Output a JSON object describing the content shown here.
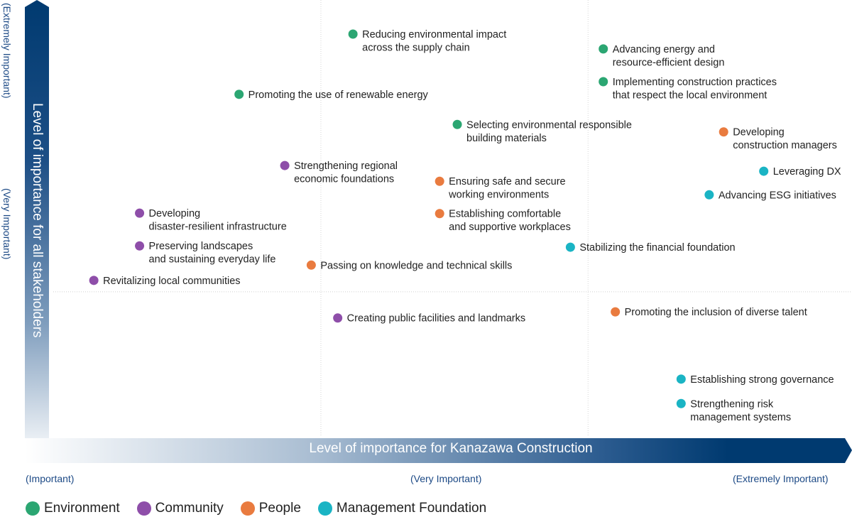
{
  "chart_data": {
    "type": "scatter",
    "title": "",
    "xlabel": "Level of importance for Kanazawa Construction",
    "ylabel": "Level of importance for all stakeholders",
    "xlim": [
      0,
      100
    ],
    "ylim": [
      0,
      100
    ],
    "grid": {
      "x": [
        33.8,
        67.1
      ],
      "y": [
        33.2
      ]
    },
    "x_ticks": [
      "(Important)",
      "(Very Important)",
      "(Extremely Important)"
    ],
    "y_ticks": [
      "(Extremely Important)",
      "(Very Important)"
    ],
    "legend_placement": "bottom-left",
    "categories": [
      {
        "key": "env",
        "name": "Environment",
        "color": "#2ba672"
      },
      {
        "key": "com",
        "name": "Community",
        "color": "#8e4ea9"
      },
      {
        "key": "ppl",
        "name": "People",
        "color": "#e97b3f"
      },
      {
        "key": "mgt",
        "name": "Management Foundation",
        "color": "#1ab4c4"
      }
    ],
    "points": [
      {
        "cat": "env",
        "x": 37.8,
        "y": 92.2,
        "label": [
          "Reducing environmental impact",
          "across the supply chain"
        ]
      },
      {
        "cat": "env",
        "x": 69.0,
        "y": 88.8,
        "label": [
          "Advancing energy and",
          "resource-efficient design"
        ]
      },
      {
        "cat": "env",
        "x": 69.0,
        "y": 81.3,
        "label": [
          "Implementing construction practices",
          "that respect the local environment"
        ]
      },
      {
        "cat": "env",
        "x": 23.6,
        "y": 78.4,
        "label": [
          "Promoting the use of renewable energy"
        ]
      },
      {
        "cat": "env",
        "x": 50.8,
        "y": 71.5,
        "label": [
          "Selecting environmental responsible",
          "building materials"
        ]
      },
      {
        "cat": "ppl",
        "x": 84.0,
        "y": 69.8,
        "label": [
          "Developing",
          "construction managers"
        ]
      },
      {
        "cat": "com",
        "x": 29.3,
        "y": 62.1,
        "label": [
          "Strengthening regional",
          "economic foundations"
        ]
      },
      {
        "cat": "mgt",
        "x": 89.0,
        "y": 60.8,
        "label": [
          "Leveraging DX"
        ]
      },
      {
        "cat": "ppl",
        "x": 48.6,
        "y": 58.5,
        "label": [
          "Ensuring safe and secure",
          "working environments"
        ]
      },
      {
        "cat": "mgt",
        "x": 82.2,
        "y": 55.4,
        "label": [
          "Advancing ESG initiatives"
        ]
      },
      {
        "cat": "com",
        "x": 11.2,
        "y": 51.2,
        "label": [
          "Developing",
          "disaster-resilient infrastructure"
        ]
      },
      {
        "cat": "ppl",
        "x": 48.6,
        "y": 51.1,
        "label": [
          "Establishing comfortable",
          "and supportive workplaces"
        ]
      },
      {
        "cat": "com",
        "x": 11.2,
        "y": 43.7,
        "label": [
          "Preserving landscapes",
          "and sustaining everyday life"
        ]
      },
      {
        "cat": "mgt",
        "x": 64.9,
        "y": 43.4,
        "label": [
          "Stabilizing the financial foundation"
        ]
      },
      {
        "cat": "ppl",
        "x": 32.6,
        "y": 39.3,
        "label": [
          "Passing on knowledge and technical skills"
        ]
      },
      {
        "cat": "com",
        "x": 5.5,
        "y": 35.8,
        "label": [
          "Revitalizing local communities"
        ]
      },
      {
        "cat": "com",
        "x": 35.9,
        "y": 27.2,
        "label": [
          "Creating public facilities and landmarks"
        ]
      },
      {
        "cat": "ppl",
        "x": 70.5,
        "y": 28.6,
        "label": [
          "Promoting the inclusion of diverse talent"
        ]
      },
      {
        "cat": "mgt",
        "x": 78.7,
        "y": 13.2,
        "label": [
          "Establishing strong governance"
        ]
      },
      {
        "cat": "mgt",
        "x": 78.7,
        "y": 7.6,
        "label": [
          "Strengthening risk",
          "management systems"
        ]
      }
    ]
  }
}
